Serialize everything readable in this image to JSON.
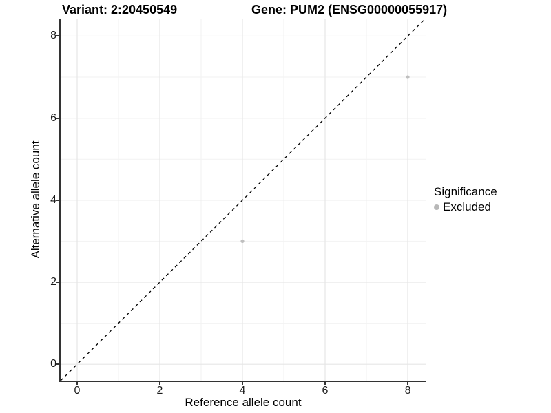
{
  "chart_data": {
    "type": "scatter",
    "titles": {
      "left": "Variant: 2:20450549",
      "right": "Gene: PUM2 (ENSG00000055917)"
    },
    "xlabel": "Reference allele count",
    "ylabel": "Alternative allele count",
    "xlim": [
      -0.4,
      8.433
    ],
    "ylim": [
      -0.4,
      8.41
    ],
    "x_ticks": [
      0,
      2,
      4,
      6,
      8
    ],
    "y_ticks": [
      0,
      2,
      4,
      6,
      8
    ],
    "x_minor_ticks": [
      1,
      3,
      5,
      7
    ],
    "y_minor_ticks": [
      1,
      3,
      5,
      7
    ],
    "grid": "major and minor, light gray on white",
    "identity_line": {
      "dashed": true,
      "color": "#000000"
    },
    "series": [
      {
        "name": "Excluded",
        "color": "#bfbfbf",
        "points": [
          {
            "x": 4,
            "y": 3
          },
          {
            "x": 8,
            "y": 7
          }
        ]
      }
    ],
    "legend": {
      "title": "Significance",
      "position": "right",
      "items": [
        {
          "label": "Excluded",
          "color": "#b8b8b8"
        }
      ]
    }
  },
  "colors": {
    "axis_line": "#333333",
    "tick_mark": "#333333",
    "grid_major": "#e6e6e6",
    "grid_minor": "#f2f2f2",
    "background": "#ffffff"
  }
}
